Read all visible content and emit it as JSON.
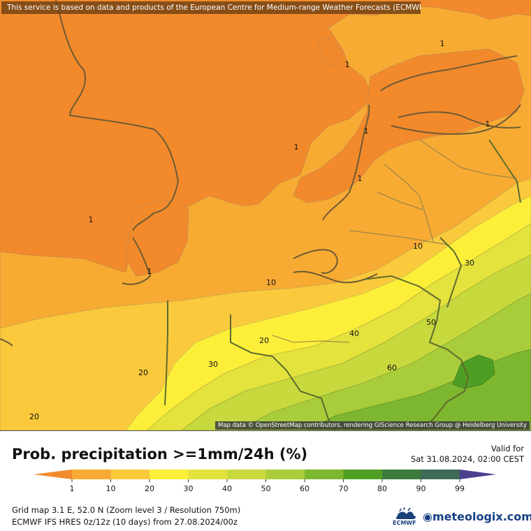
{
  "header": {
    "banner_text": "This service is based on data and products of the European Centre for Medium-range Weather Forecasts (ECMWF)",
    "attribution": "Map data © OpenStreetMap contributors, rendering GIScience Research Group @ Heidelberg University"
  },
  "footer": {
    "title": "Prob. precipitation >=1mm/24h (%)",
    "valid_label": "Valid for",
    "valid_time": "Sat 31.08.2024, 02:00 CEST",
    "grid_info": "Grid map 3.1 E, 52.0 N (Zoom level 3 / Resolution 750m)",
    "model_info": "ECMWF IFS HRES 0z/12z (10 days) from 27.08.2024/00z",
    "ecmwf_logo_text": "ECMWF",
    "brand": "meteologix.com"
  },
  "legend": {
    "ticks": [
      "1",
      "10",
      "20",
      "30",
      "40",
      "50",
      "60",
      "70",
      "80",
      "90",
      "99"
    ],
    "colors": [
      "#f28a2c",
      "#f7ab33",
      "#fac93c",
      "#fdee3a",
      "#e4e23c",
      "#c8d93e",
      "#a9cc3a",
      "#7db62f",
      "#4f9e24",
      "#3c7b3e",
      "#3f6a55",
      "#4b3f8f"
    ]
  },
  "map": {
    "contour_labels": [
      {
        "text": "1"
      },
      {
        "text": "1"
      },
      {
        "text": "1"
      },
      {
        "text": "1"
      },
      {
        "text": "1"
      },
      {
        "text": "1"
      },
      {
        "text": "1"
      },
      {
        "text": "1"
      },
      {
        "text": "10"
      },
      {
        "text": "10"
      },
      {
        "text": "20"
      },
      {
        "text": "20"
      },
      {
        "text": "20"
      },
      {
        "text": "30"
      },
      {
        "text": "30"
      },
      {
        "text": "40"
      },
      {
        "text": "50"
      },
      {
        "text": "60"
      }
    ]
  }
}
